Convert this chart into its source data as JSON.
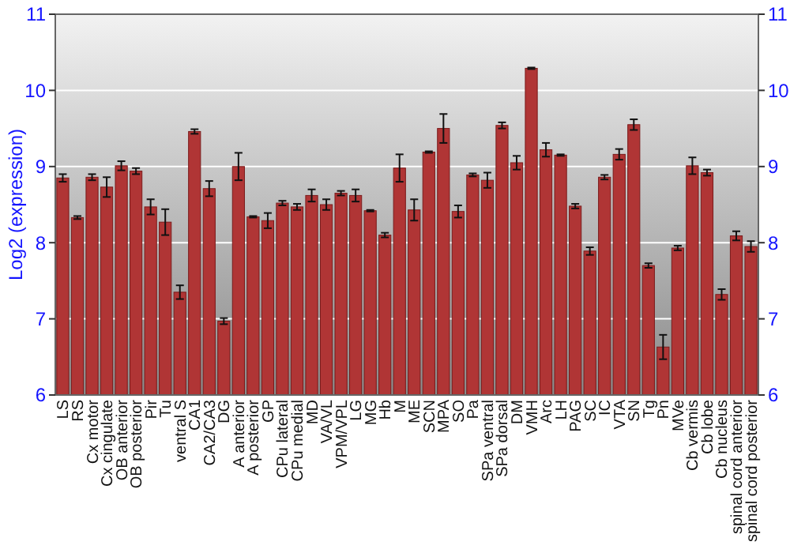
{
  "chart_data": {
    "type": "bar",
    "ylabel": "Log2 (expression)",
    "categories": [
      "LS",
      "RS",
      "Cx motor",
      "Cx cingulate",
      "OB anterior",
      "OB posterior",
      "Pir",
      "Tu",
      "ventral S",
      "CA1",
      "CA2/CA3",
      "DG",
      "A anterior",
      "A posterior",
      "GP",
      "CPu lateral",
      "CPu medial",
      "MD",
      "VA/VL",
      "VPM/VPL",
      "LG",
      "MG",
      "Hb",
      "M",
      "ME",
      "SCN",
      "MPA",
      "SO",
      "Pa",
      "SPa ventral",
      "SPa dorsal",
      "DM",
      "VMH",
      "Arc",
      "LH",
      "PAG",
      "SC",
      "IC",
      "VTA",
      "SN",
      "Tg",
      "Pn",
      "MVe",
      "Cb vermis",
      "Cb lobe",
      "Cb nucleus",
      "spinal cord anterior",
      "spinal cord posterior"
    ],
    "values": [
      8.85,
      8.33,
      8.86,
      8.73,
      9.01,
      8.94,
      8.47,
      8.27,
      7.35,
      9.46,
      8.71,
      6.97,
      9.0,
      8.34,
      8.29,
      8.52,
      8.47,
      8.62,
      8.5,
      8.65,
      8.62,
      8.42,
      8.1,
      8.98,
      8.43,
      9.19,
      9.5,
      8.41,
      8.89,
      8.82,
      9.54,
      9.05,
      10.29,
      9.22,
      9.15,
      8.48,
      7.89,
      8.86,
      9.16,
      9.55,
      7.7,
      6.63,
      7.93,
      9.01,
      8.92,
      7.32,
      8.09,
      7.95
    ],
    "errors": [
      0.05,
      0.02,
      0.04,
      0.13,
      0.06,
      0.04,
      0.1,
      0.17,
      0.09,
      0.03,
      0.1,
      0.04,
      0.18,
      0.01,
      0.1,
      0.03,
      0.04,
      0.08,
      0.07,
      0.03,
      0.08,
      0.01,
      0.03,
      0.18,
      0.14,
      0.01,
      0.19,
      0.08,
      0.02,
      0.1,
      0.04,
      0.09,
      0.01,
      0.09,
      0.01,
      0.03,
      0.05,
      0.03,
      0.07,
      0.07,
      0.03,
      0.16,
      0.03,
      0.11,
      0.04,
      0.07,
      0.06,
      0.07
    ],
    "color": "#b03535",
    "ylim": [
      6,
      11
    ],
    "yticks": [
      6,
      7,
      8,
      9,
      10,
      11
    ],
    "y2lim": [
      6,
      11
    ],
    "y2ticks": [
      6,
      7,
      8,
      9,
      10,
      11
    ],
    "grid": "y"
  }
}
